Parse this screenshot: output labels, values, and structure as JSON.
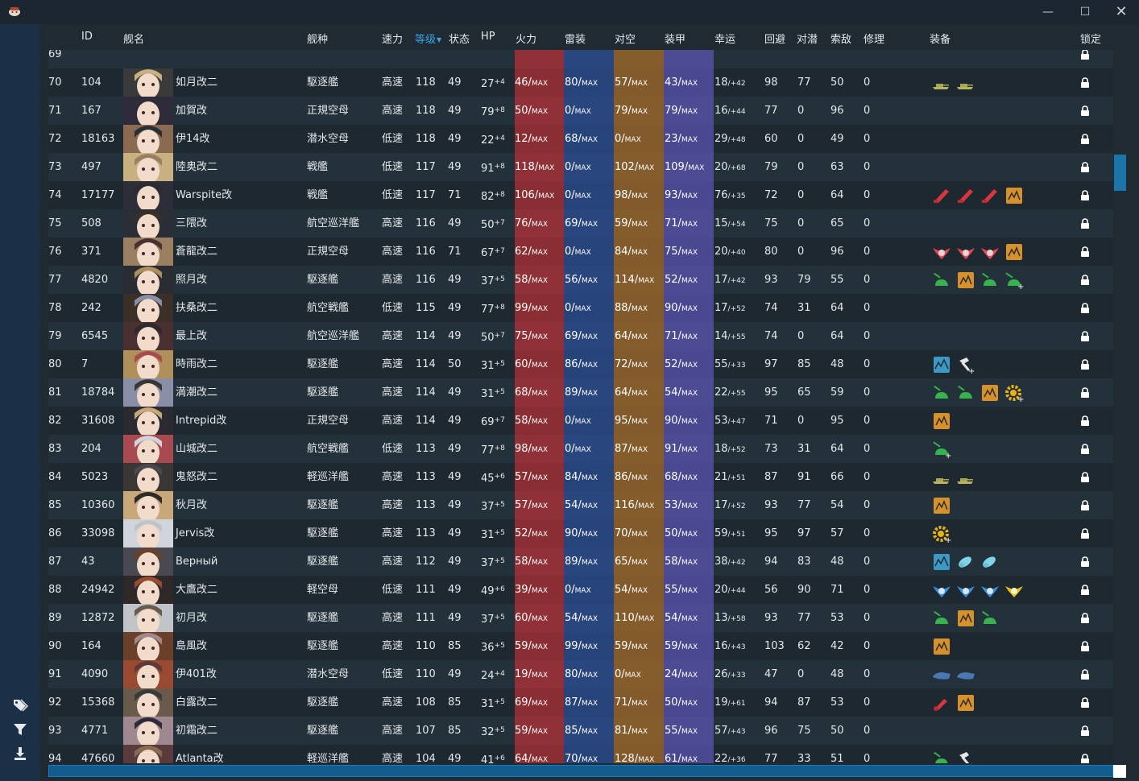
{
  "window": {
    "icon": "app-icon",
    "controls": [
      "minimize-icon",
      "maximize-icon",
      "close-icon"
    ]
  },
  "sidebar": {
    "icons": [
      "tag-icon",
      "filter-icon",
      "download-icon"
    ]
  },
  "columns": [
    "ID",
    "舰名",
    "舰种",
    "速力",
    "等级",
    "状态",
    "HP",
    "火力",
    "雷装",
    "对空",
    "装甲",
    "幸运",
    "回避",
    "对潜",
    "索敌",
    "修理",
    "装备",
    "锁定"
  ],
  "sorted_column": "等级",
  "partial_row": {
    "num": "69"
  },
  "rows": [
    {
      "num": "70",
      "id": "104",
      "name": "如月改二",
      "type": "駆逐艦",
      "speed": "高速",
      "level": "118",
      "cond": "49",
      "hp": "27",
      "hp_mod": "+4",
      "fp": "46",
      "tp": "80",
      "aa": "57",
      "ar": "43",
      "luck": "18",
      "luck_mod": "/+42",
      "eva": "98",
      "asw": "77",
      "los": "50",
      "rep": "0",
      "equip": [
        "tank",
        "tank"
      ]
    },
    {
      "num": "71",
      "id": "167",
      "name": "加賀改",
      "type": "正規空母",
      "speed": "高速",
      "level": "118",
      "cond": "49",
      "hp": "79",
      "hp_mod": "+8",
      "fp": "50",
      "tp": "0",
      "aa": "79",
      "ar": "79",
      "luck": "16",
      "luck_mod": "/+44",
      "eva": "77",
      "asw": "0",
      "los": "96",
      "rep": "0",
      "equip": []
    },
    {
      "num": "72",
      "id": "18163",
      "name": "伊14改",
      "type": "潜水空母",
      "speed": "低速",
      "level": "118",
      "cond": "49",
      "hp": "22",
      "hp_mod": "+4",
      "fp": "12",
      "tp": "68",
      "aa": "0",
      "ar": "23",
      "luck": "29",
      "luck_mod": "/+48",
      "eva": "60",
      "asw": "0",
      "los": "49",
      "rep": "0",
      "equip": []
    },
    {
      "num": "73",
      "id": "497",
      "name": "陸奥改二",
      "type": "戦艦",
      "speed": "低速",
      "level": "117",
      "cond": "49",
      "hp": "91",
      "hp_mod": "+8",
      "fp": "118",
      "tp": "0",
      "aa": "102",
      "ar": "109",
      "luck": "20",
      "luck_mod": "/+68",
      "eva": "79",
      "asw": "0",
      "los": "63",
      "rep": "0",
      "equip": []
    },
    {
      "num": "74",
      "id": "17177",
      "name": "Warspite改",
      "type": "戦艦",
      "speed": "低速",
      "level": "117",
      "cond": "71",
      "hp": "82",
      "hp_mod": "+8",
      "fp": "106",
      "tp": "0",
      "aa": "98",
      "ar": "93",
      "luck": "76",
      "luck_mod": "/+35",
      "eva": "72",
      "asw": "0",
      "los": "64",
      "rep": "0",
      "equip": [
        "gun",
        "gun",
        "gun",
        "radar"
      ]
    },
    {
      "num": "75",
      "id": "508",
      "name": "三隈改",
      "type": "航空巡洋艦",
      "speed": "高速",
      "level": "116",
      "cond": "49",
      "hp": "50",
      "hp_mod": "+7",
      "fp": "76",
      "tp": "69",
      "aa": "59",
      "ar": "71",
      "luck": "15",
      "luck_mod": "/+54",
      "eva": "75",
      "asw": "0",
      "los": "65",
      "rep": "0",
      "equip": []
    },
    {
      "num": "76",
      "id": "371",
      "name": "蒼龍改二",
      "type": "正規空母",
      "speed": "高速",
      "level": "116",
      "cond": "71",
      "hp": "67",
      "hp_mod": "+7",
      "fp": "62",
      "tp": "0",
      "aa": "84",
      "ar": "75",
      "luck": "20",
      "luck_mod": "/+40",
      "eva": "80",
      "asw": "0",
      "los": "96",
      "rep": "0",
      "equip": [
        "bomber",
        "bomber",
        "bomber",
        "radar"
      ]
    },
    {
      "num": "77",
      "id": "4820",
      "name": "照月改",
      "type": "駆逐艦",
      "speed": "高速",
      "level": "116",
      "cond": "49",
      "hp": "37",
      "hp_mod": "+5",
      "fp": "58",
      "tp": "56",
      "aa": "114",
      "ar": "52",
      "luck": "17",
      "luck_mod": "/+42",
      "eva": "93",
      "asw": "79",
      "los": "55",
      "rep": "0",
      "equip": [
        "green",
        "radar",
        "green",
        "green-plus"
      ]
    },
    {
      "num": "78",
      "id": "242",
      "name": "扶桑改二",
      "type": "航空戦艦",
      "speed": "低速",
      "level": "115",
      "cond": "49",
      "hp": "77",
      "hp_mod": "+8",
      "fp": "99",
      "tp": "0",
      "aa": "88",
      "ar": "90",
      "luck": "17",
      "luck_mod": "/+52",
      "eva": "74",
      "asw": "31",
      "los": "64",
      "rep": "0",
      "equip": []
    },
    {
      "num": "79",
      "id": "6545",
      "name": "最上改",
      "type": "航空巡洋艦",
      "speed": "高速",
      "level": "114",
      "cond": "49",
      "hp": "50",
      "hp_mod": "+7",
      "fp": "75",
      "tp": "69",
      "aa": "64",
      "ar": "71",
      "luck": "14",
      "luck_mod": "/+55",
      "eva": "74",
      "asw": "0",
      "los": "64",
      "rep": "0",
      "equip": []
    },
    {
      "num": "80",
      "id": "7",
      "name": "時雨改二",
      "type": "駆逐艦",
      "speed": "高速",
      "level": "114",
      "cond": "50",
      "hp": "31",
      "hp_mod": "+5",
      "fp": "60",
      "tp": "86",
      "aa": "72",
      "ar": "52",
      "luck": "55",
      "luck_mod": "/+33",
      "eva": "97",
      "asw": "85",
      "los": "48",
      "rep": "0",
      "equip": [
        "sonar",
        "hammer"
      ]
    },
    {
      "num": "81",
      "id": "18784",
      "name": "満潮改二",
      "type": "駆逐艦",
      "speed": "高速",
      "level": "114",
      "cond": "49",
      "hp": "31",
      "hp_mod": "+5",
      "fp": "68",
      "tp": "89",
      "aa": "64",
      "ar": "54",
      "luck": "22",
      "luck_mod": "/+55",
      "eva": "95",
      "asw": "65",
      "los": "59",
      "rep": "0",
      "equip": [
        "green",
        "green",
        "radar",
        "gear"
      ]
    },
    {
      "num": "82",
      "id": "31608",
      "name": "Intrepid改",
      "type": "正規空母",
      "speed": "高速",
      "level": "114",
      "cond": "49",
      "hp": "69",
      "hp_mod": "+7",
      "fp": "58",
      "tp": "0",
      "aa": "95",
      "ar": "90",
      "luck": "53",
      "luck_mod": "/+47",
      "eva": "71",
      "asw": "0",
      "los": "95",
      "rep": "0",
      "equip": [
        "radar"
      ]
    },
    {
      "num": "83",
      "id": "204",
      "name": "山城改二",
      "type": "航空戦艦",
      "speed": "低速",
      "level": "113",
      "cond": "49",
      "hp": "77",
      "hp_mod": "+8",
      "fp": "98",
      "tp": "0",
      "aa": "87",
      "ar": "91",
      "luck": "18",
      "luck_mod": "/+52",
      "eva": "73",
      "asw": "31",
      "los": "64",
      "rep": "0",
      "equip": [
        "green-plus"
      ]
    },
    {
      "num": "84",
      "id": "5023",
      "name": "鬼怒改二",
      "type": "軽巡洋艦",
      "speed": "高速",
      "level": "113",
      "cond": "49",
      "hp": "45",
      "hp_mod": "+6",
      "fp": "57",
      "tp": "84",
      "aa": "86",
      "ar": "68",
      "luck": "21",
      "luck_mod": "/+51",
      "eva": "87",
      "asw": "91",
      "los": "66",
      "rep": "0",
      "equip": [
        "tank",
        "tank"
      ]
    },
    {
      "num": "85",
      "id": "10360",
      "name": "秋月改",
      "type": "駆逐艦",
      "speed": "高速",
      "level": "113",
      "cond": "49",
      "hp": "37",
      "hp_mod": "+5",
      "fp": "57",
      "tp": "54",
      "aa": "116",
      "ar": "53",
      "luck": "17",
      "luck_mod": "/+52",
      "eva": "93",
      "asw": "77",
      "los": "54",
      "rep": "0",
      "equip": [
        "radar"
      ]
    },
    {
      "num": "86",
      "id": "33098",
      "name": "Jervis改",
      "type": "駆逐艦",
      "speed": "高速",
      "level": "113",
      "cond": "49",
      "hp": "31",
      "hp_mod": "+5",
      "fp": "52",
      "tp": "90",
      "aa": "70",
      "ar": "50",
      "luck": "59",
      "luck_mod": "/+51",
      "eva": "95",
      "asw": "97",
      "los": "57",
      "rep": "0",
      "equip": [
        "gear"
      ]
    },
    {
      "num": "87",
      "id": "43",
      "name": "Верный",
      "type": "駆逐艦",
      "speed": "高速",
      "level": "112",
      "cond": "49",
      "hp": "37",
      "hp_mod": "+5",
      "fp": "58",
      "tp": "89",
      "aa": "65",
      "ar": "58",
      "luck": "38",
      "luck_mod": "/+42",
      "eva": "94",
      "asw": "83",
      "los": "48",
      "rep": "0",
      "equip": [
        "sonar",
        "depth",
        "depth"
      ]
    },
    {
      "num": "88",
      "id": "24942",
      "name": "大鷹改二",
      "type": "軽空母",
      "speed": "低速",
      "level": "111",
      "cond": "49",
      "hp": "49",
      "hp_mod": "+6",
      "fp": "39",
      "tp": "0",
      "aa": "54",
      "ar": "55",
      "luck": "20",
      "luck_mod": "/+44",
      "eva": "56",
      "asw": "90",
      "los": "71",
      "rep": "0",
      "equip": [
        "plane-blue",
        "plane-blue",
        "plane-blue",
        "plane-yellow"
      ]
    },
    {
      "num": "89",
      "id": "12872",
      "name": "初月改",
      "type": "駆逐艦",
      "speed": "高速",
      "level": "111",
      "cond": "49",
      "hp": "37",
      "hp_mod": "+5",
      "fp": "60",
      "tp": "54",
      "aa": "110",
      "ar": "54",
      "luck": "13",
      "luck_mod": "/+58",
      "eva": "93",
      "asw": "77",
      "los": "53",
      "rep": "0",
      "equip": [
        "green",
        "radar",
        "green"
      ]
    },
    {
      "num": "90",
      "id": "164",
      "name": "島風改",
      "type": "駆逐艦",
      "speed": "高速",
      "level": "110",
      "cond": "85",
      "hp": "36",
      "hp_mod": "+5",
      "fp": "59",
      "tp": "99",
      "aa": "59",
      "ar": "59",
      "luck": "16",
      "luck_mod": "/+43",
      "eva": "103",
      "asw": "62",
      "los": "42",
      "rep": "0",
      "equip": [
        "radar"
      ]
    },
    {
      "num": "91",
      "id": "4090",
      "name": "伊401改",
      "type": "潜水空母",
      "speed": "低速",
      "level": "110",
      "cond": "49",
      "hp": "24",
      "hp_mod": "+4",
      "fp": "19",
      "tp": "80",
      "aa": "0",
      "ar": "24",
      "luck": "26",
      "luck_mod": "/+33",
      "eva": "47",
      "asw": "0",
      "los": "48",
      "rep": "0",
      "equip": [
        "sub",
        "sub"
      ]
    },
    {
      "num": "92",
      "id": "15368",
      "name": "白露改二",
      "type": "駆逐艦",
      "speed": "高速",
      "level": "108",
      "cond": "85",
      "hp": "31",
      "hp_mod": "+5",
      "fp": "69",
      "tp": "87",
      "aa": "71",
      "ar": "50",
      "luck": "19",
      "luck_mod": "/+61",
      "eva": "94",
      "asw": "87",
      "los": "53",
      "rep": "0",
      "equip": [
        "red-small",
        "radar"
      ]
    },
    {
      "num": "93",
      "id": "4771",
      "name": "初霜改二",
      "type": "駆逐艦",
      "speed": "高速",
      "level": "107",
      "cond": "85",
      "hp": "32",
      "hp_mod": "+5",
      "fp": "59",
      "tp": "85",
      "aa": "81",
      "ar": "55",
      "luck": "57",
      "luck_mod": "/+43",
      "eva": "96",
      "asw": "75",
      "los": "50",
      "rep": "0",
      "equip": []
    },
    {
      "num": "94",
      "id": "47660",
      "name": "Atlanta改",
      "type": "軽巡洋艦",
      "speed": "高速",
      "level": "104",
      "cond": "49",
      "hp": "41",
      "hp_mod": "+6",
      "fp": "64",
      "tp": "70",
      "aa": "128",
      "ar": "61",
      "luck": "22",
      "luck_mod": "/+36",
      "eva": "77",
      "asw": "33",
      "los": "51",
      "rep": "0",
      "equip": [
        "green",
        "hammer"
      ]
    }
  ],
  "max_label": "MAX",
  "colors": {
    "firepower": "#8b2e34",
    "torpedo": "#27447a",
    "anti_air": "#825a2b",
    "armor": "#4a4890",
    "accent": "#3aa3e0"
  }
}
